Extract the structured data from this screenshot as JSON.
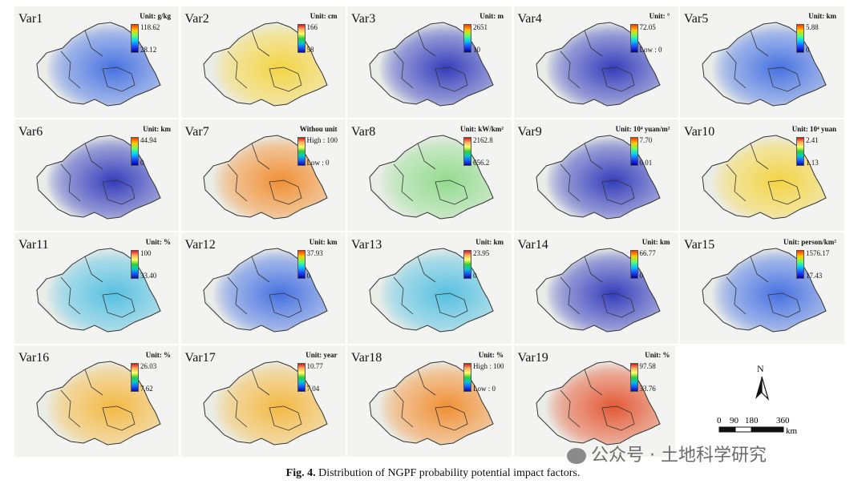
{
  "caption": {
    "label": "Fig. 4.",
    "text": "Distribution of NGPF probability potential impact factors."
  },
  "watermark": "公众号 · 土地科学研究",
  "compass": {
    "label": "N"
  },
  "scalebar": {
    "labels": [
      "0",
      "90",
      "180",
      "360"
    ],
    "unit": "km"
  },
  "panels": [
    {
      "name": "Var1",
      "unit": "Unit: g/kg",
      "high": "118.62",
      "low": "28.12",
      "theme": "blue"
    },
    {
      "name": "Var2",
      "unit": "Unit: cm",
      "high": "166",
      "low": "58",
      "theme": "yellow"
    },
    {
      "name": "Var3",
      "unit": "Unit: m",
      "high": "2651",
      "low": "10",
      "theme": "dark"
    },
    {
      "name": "Var4",
      "unit": "Unit: °",
      "high": "72.05",
      "low": "Low : 0",
      "theme": "dark"
    },
    {
      "name": "Var5",
      "unit": "Unit: km",
      "high": "5.88",
      "low": "0",
      "theme": "blue"
    },
    {
      "name": "Var6",
      "unit": "Unit: km",
      "high": "44.94",
      "low": "0",
      "theme": "dark"
    },
    {
      "name": "Var7",
      "unit": "Withou unit",
      "high": "High : 100",
      "low": "Low : 0",
      "theme": "orange"
    },
    {
      "name": "Var8",
      "unit": "Unit: kW/km²",
      "high": "2162.8",
      "low": "656.2",
      "theme": "green"
    },
    {
      "name": "Var9",
      "unit": "Unit: 10⁴ yuan/m²",
      "high": "7.70",
      "low": "0.01",
      "theme": "dark"
    },
    {
      "name": "Var10",
      "unit": "Unit: 10⁴ yuan",
      "high": "2.41",
      "low": "1.13",
      "theme": "yellow"
    },
    {
      "name": "Var11",
      "unit": "Unit: %",
      "high": "100",
      "low": "33.40",
      "theme": "cyan"
    },
    {
      "name": "Var12",
      "unit": "Unit: km",
      "high": "37.93",
      "low": "0",
      "theme": "blue"
    },
    {
      "name": "Var13",
      "unit": "Unit: km",
      "high": "23.95",
      "low": "0",
      "theme": "cyan"
    },
    {
      "name": "Var14",
      "unit": "Unit: km",
      "high": "66.77",
      "low": "0",
      "theme": "dark"
    },
    {
      "name": "Var15",
      "unit": "Unit: person/km²",
      "high": "1576.17",
      "low": "17.43",
      "theme": "blue"
    },
    {
      "name": "Var16",
      "unit": "Unit: %",
      "high": "26.03",
      "low": "7.62",
      "theme": "mixed"
    },
    {
      "name": "Var17",
      "unit": "Unit: year",
      "high": "10.77",
      "low": "7.04",
      "theme": "mixed"
    },
    {
      "name": "Var18",
      "unit": "Unit: %",
      "high": "High : 100",
      "low": "Low : 0",
      "theme": "orange"
    },
    {
      "name": "Var19",
      "unit": "Unit: %",
      "high": "97.58",
      "low": "33.76",
      "theme": "red"
    }
  ],
  "colors": {
    "dark": "#2a33b8",
    "blue": "#3d6ae0",
    "cyan": "#4dbde0",
    "yellow": "#f3d23a",
    "orange": "#f08a2a",
    "green": "#8ed98a",
    "red": "#e2502a",
    "mixed": "#f3b53a",
    "province_fill": "#e9ece6",
    "border": "#333333"
  }
}
